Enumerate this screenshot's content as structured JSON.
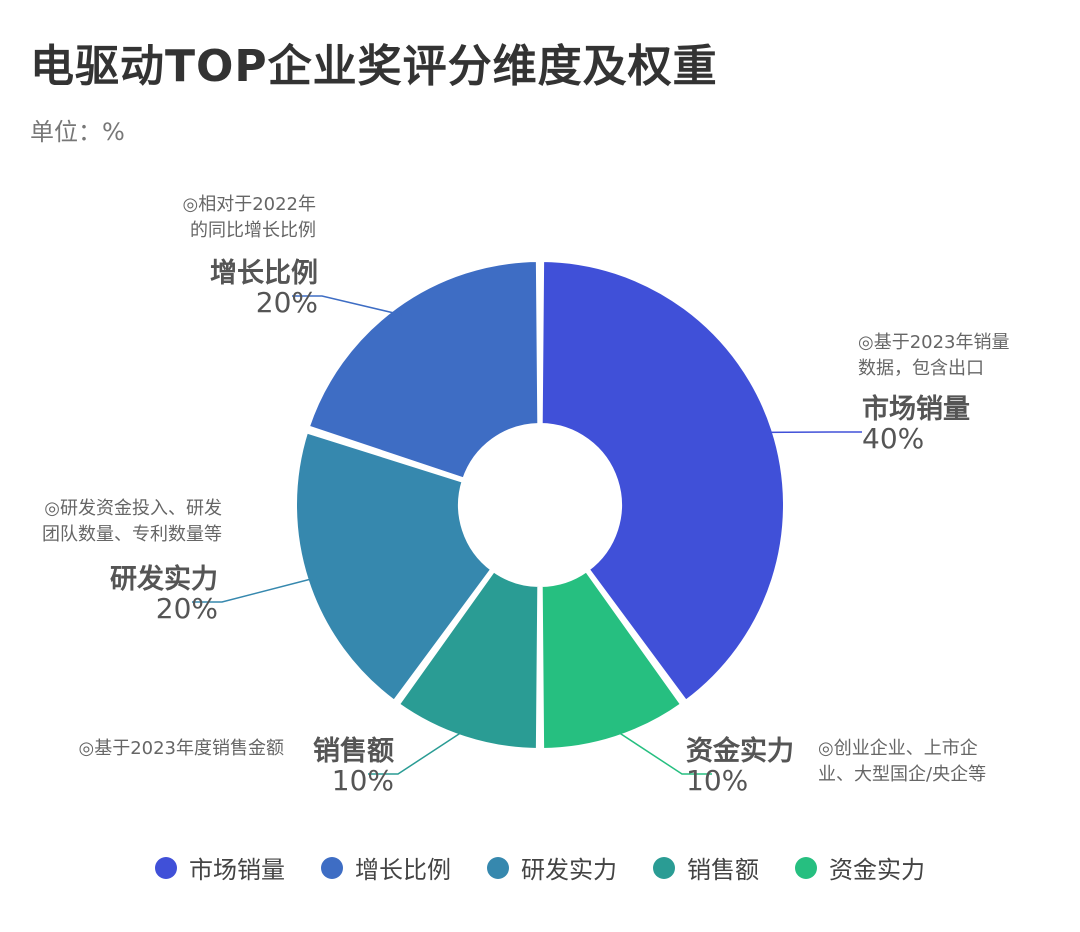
{
  "title": "电驱动TOP企业奖评分维度及权重",
  "unit_label": "单位：%",
  "chart_data": {
    "type": "pie",
    "donut": true,
    "legend_position": "bottom",
    "slices": [
      {
        "label": "市场销量",
        "value": 40,
        "value_label": "40%",
        "color": "#4050D8",
        "note": [
          "◎基于2023年销量",
          "数据，包含出口"
        ]
      },
      {
        "label": "资金实力",
        "value": 10,
        "value_label": "10%",
        "color": "#26BF80",
        "note": [
          "◎创业企业、上市企",
          "业、大型国企/央企等"
        ]
      },
      {
        "label": "销售额",
        "value": 10,
        "value_label": "10%",
        "color": "#2A9C94",
        "note": [
          "◎基于2023年度销售金额"
        ]
      },
      {
        "label": "研发实力",
        "value": 20,
        "value_label": "20%",
        "color": "#3688AE",
        "note": [
          "◎研发资金投入、研发",
          "团队数量、专利数量等"
        ]
      },
      {
        "label": "增长比例",
        "value": 20,
        "value_label": "20%",
        "color": "#3E6DC4",
        "note": [
          "◎相对于2022年",
          "的同比增长比例"
        ]
      }
    ]
  },
  "legend": [
    {
      "label": "市场销量",
      "color": "#4050D8"
    },
    {
      "label": "增长比例",
      "color": "#3E6DC4"
    },
    {
      "label": "研发实力",
      "color": "#3688AE"
    },
    {
      "label": "销售额",
      "color": "#2A9C94"
    },
    {
      "label": "资金实力",
      "color": "#26BF80"
    }
  ]
}
